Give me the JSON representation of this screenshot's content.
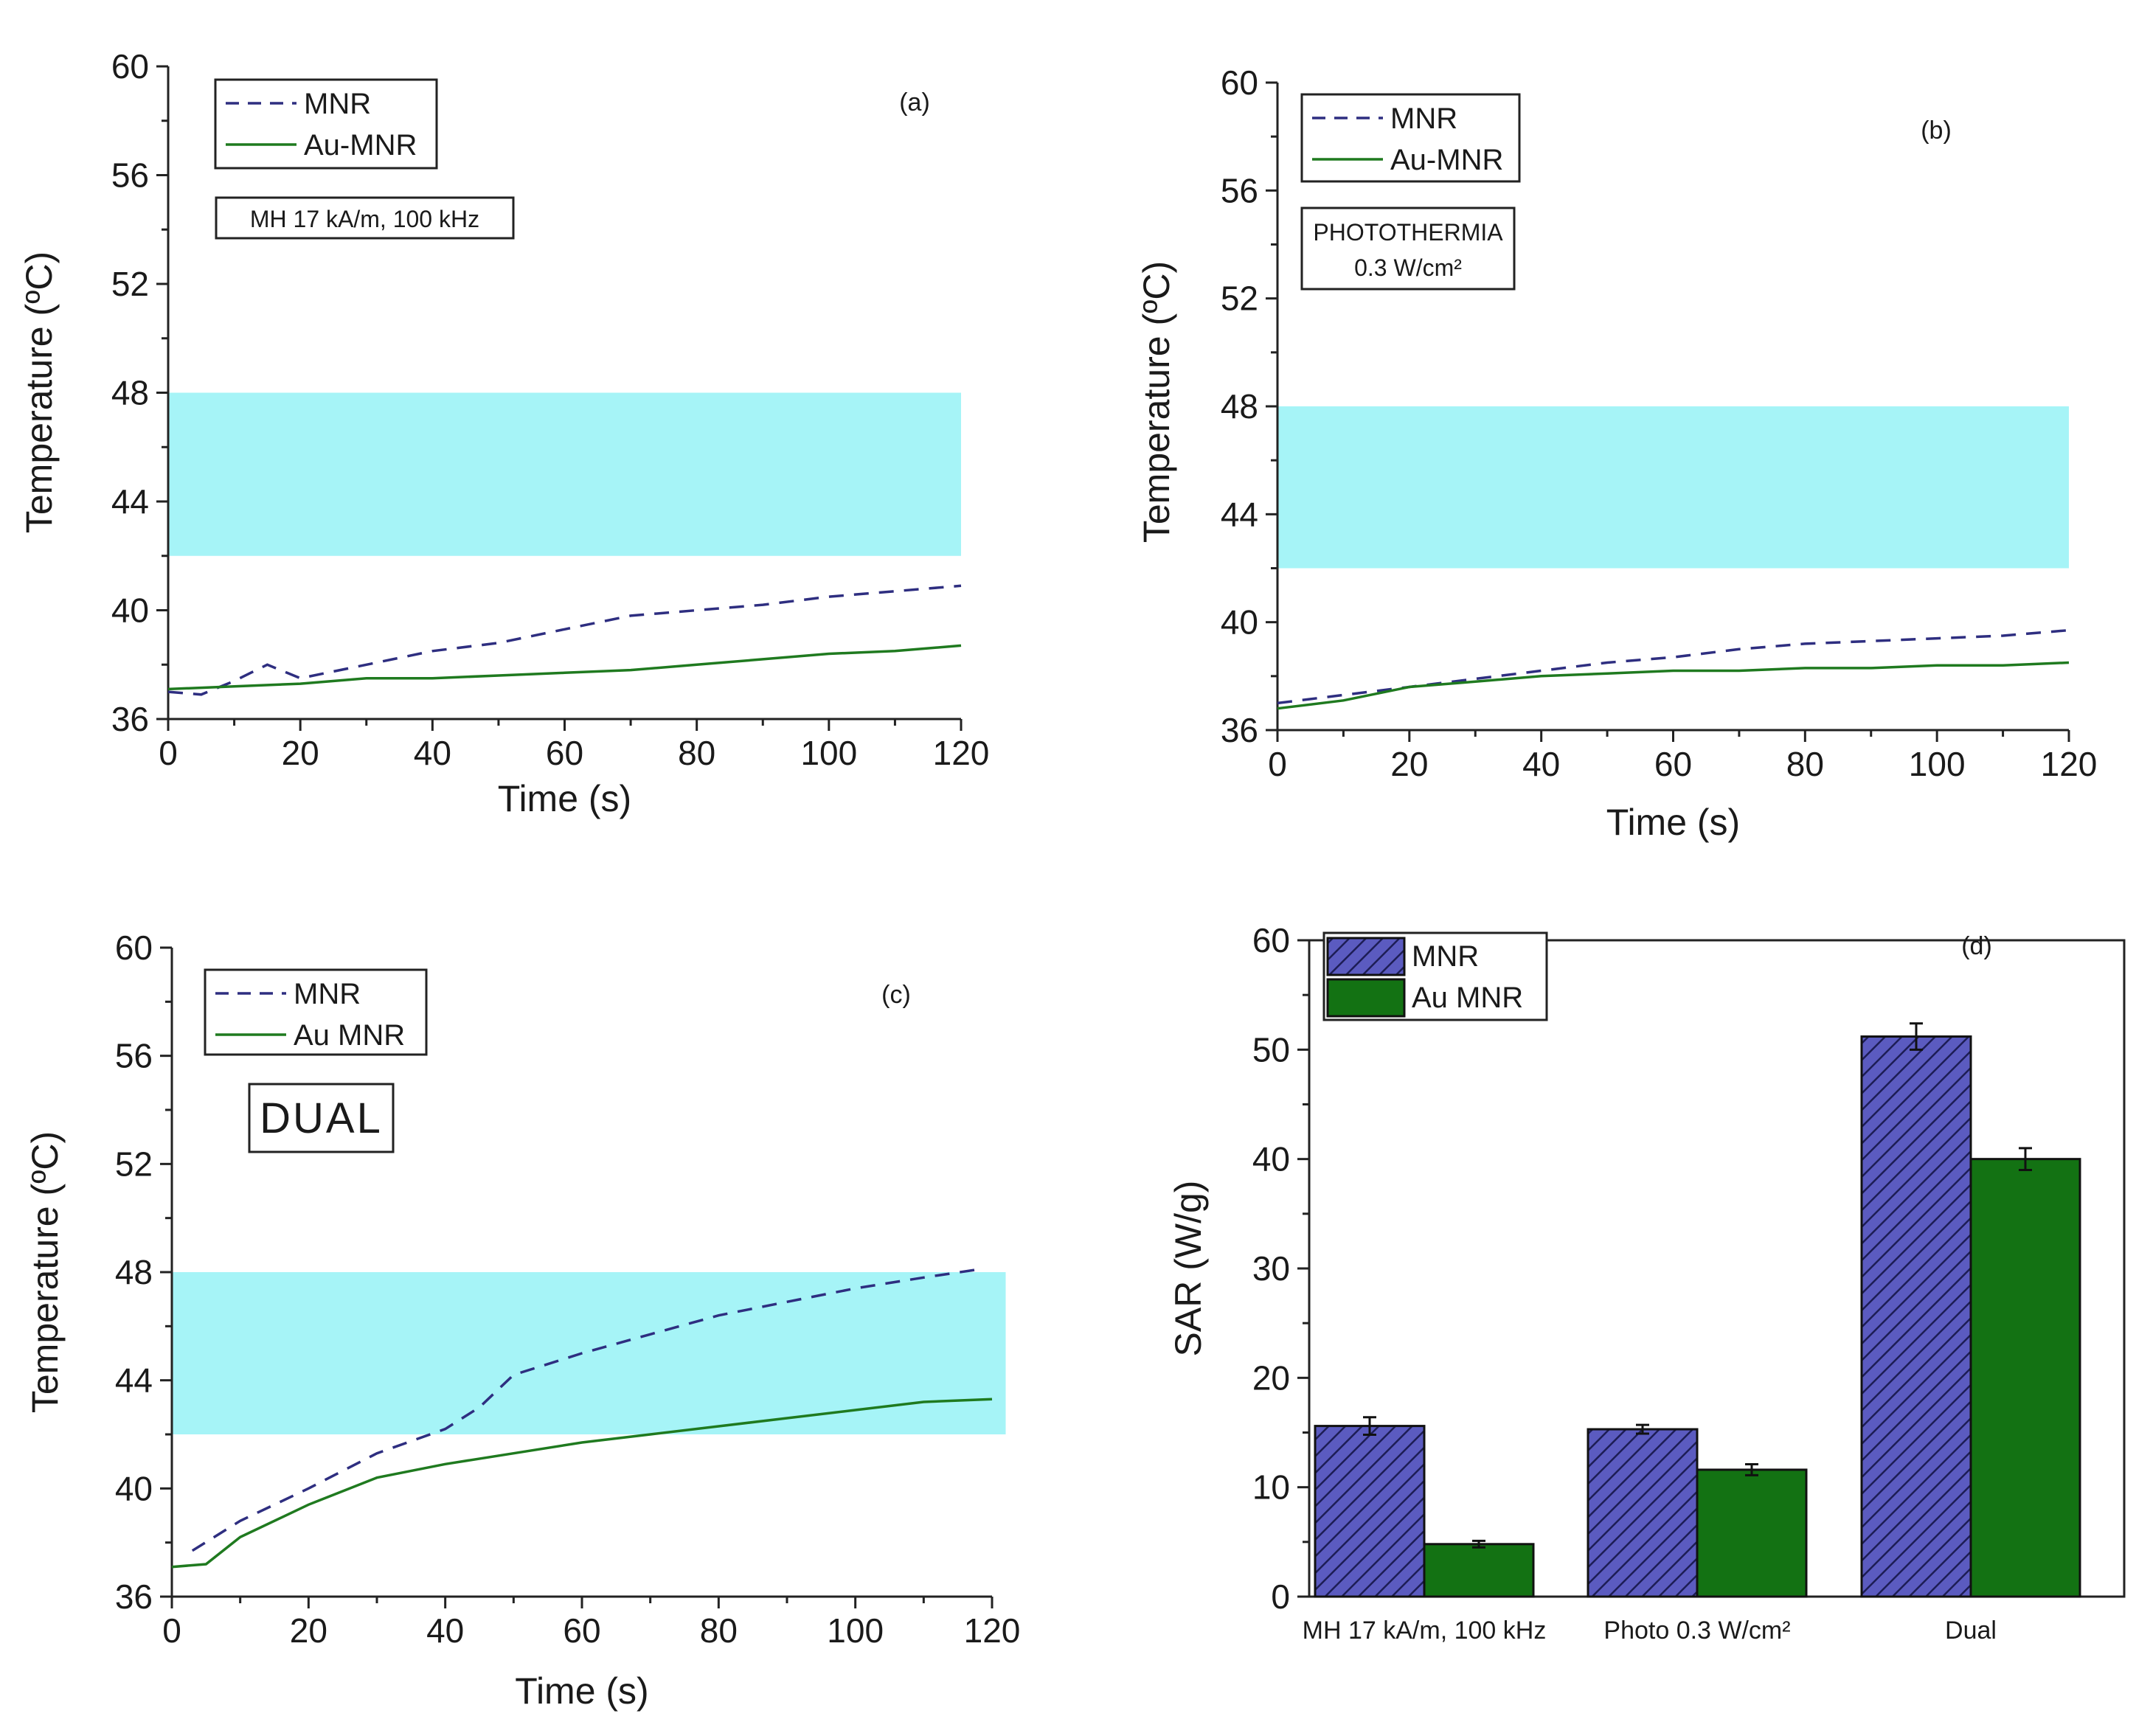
{
  "colors": {
    "mnr": "#2e2e80",
    "au_mnr": "#1f7a1f",
    "band": "#a6f4f7",
    "bar_mnr": "#5b5bc0",
    "bar_au": "#137213"
  },
  "chart_data": [
    {
      "type": "line",
      "panel": "(a)",
      "xlabel": "Time (s)",
      "ylabel": "Temperature (ºC)",
      "xlim": [
        0,
        120
      ],
      "ylim": [
        36,
        60
      ],
      "xticks": [
        0,
        20,
        40,
        60,
        80,
        100,
        120
      ],
      "yticks": [
        36,
        40,
        44,
        48,
        52,
        56,
        60
      ],
      "band": [
        42,
        48
      ],
      "band_xmax": 120,
      "legend": [
        "MNR",
        "Au-MNR"
      ],
      "annotation": "MH 17 kA/m, 100 kHz",
      "series": [
        {
          "name": "MNR",
          "style": "dashed",
          "x": [
            0,
            5,
            10,
            15,
            20,
            30,
            40,
            50,
            60,
            70,
            80,
            90,
            100,
            110,
            120
          ],
          "y": [
            37.0,
            36.9,
            37.4,
            38.0,
            37.5,
            38.0,
            38.5,
            38.8,
            39.3,
            39.8,
            40.0,
            40.2,
            40.5,
            40.7,
            40.9
          ]
        },
        {
          "name": "Au-MNR",
          "style": "solid",
          "x": [
            0,
            10,
            20,
            30,
            40,
            50,
            60,
            70,
            80,
            90,
            100,
            110,
            120
          ],
          "y": [
            37.1,
            37.2,
            37.3,
            37.5,
            37.5,
            37.6,
            37.7,
            37.8,
            38.0,
            38.2,
            38.4,
            38.5,
            38.7
          ]
        }
      ]
    },
    {
      "type": "line",
      "panel": "(b)",
      "xlabel": "Time (s)",
      "ylabel": "Temperature (ºC)",
      "xlim": [
        0,
        120
      ],
      "ylim": [
        36,
        60
      ],
      "xticks": [
        0,
        20,
        40,
        60,
        80,
        100,
        120
      ],
      "yticks": [
        36,
        40,
        44,
        48,
        52,
        56,
        60
      ],
      "band": [
        42,
        48
      ],
      "band_xmax": 120,
      "legend": [
        "MNR",
        "Au-MNR"
      ],
      "annotation_line1": "PHOTOTHERMIA",
      "annotation_line2": "0.3 W/cm²",
      "series": [
        {
          "name": "MNR",
          "style": "dashed",
          "x": [
            0,
            10,
            20,
            30,
            40,
            50,
            60,
            70,
            80,
            90,
            100,
            110,
            120
          ],
          "y": [
            37.0,
            37.3,
            37.6,
            37.9,
            38.2,
            38.5,
            38.7,
            39.0,
            39.2,
            39.3,
            39.4,
            39.5,
            39.7
          ]
        },
        {
          "name": "Au-MNR",
          "style": "solid",
          "x": [
            0,
            10,
            20,
            30,
            40,
            50,
            60,
            70,
            80,
            90,
            100,
            110,
            120
          ],
          "y": [
            36.8,
            37.1,
            37.6,
            37.8,
            38.0,
            38.1,
            38.2,
            38.2,
            38.3,
            38.3,
            38.4,
            38.4,
            38.5
          ]
        }
      ]
    },
    {
      "type": "line",
      "panel": "(c)",
      "xlabel": "Time (s)",
      "ylabel": "Temperature (ºC)",
      "xlim": [
        0,
        120
      ],
      "ylim": [
        36,
        60
      ],
      "xticks": [
        0,
        20,
        40,
        60,
        80,
        100,
        120
      ],
      "yticks": [
        36,
        40,
        44,
        48,
        52,
        56,
        60
      ],
      "band": [
        42,
        48
      ],
      "band_xmax": 122,
      "legend": [
        "MNR",
        "Au MNR"
      ],
      "annotation": "DUAL",
      "series": [
        {
          "name": "MNR",
          "style": "dashed",
          "x": [
            3,
            10,
            20,
            30,
            40,
            45,
            50,
            55,
            60,
            70,
            80,
            90,
            100,
            110,
            118
          ],
          "y": [
            37.7,
            38.8,
            40.0,
            41.3,
            42.2,
            43.0,
            44.2,
            44.6,
            45.0,
            45.7,
            46.4,
            46.9,
            47.4,
            47.8,
            48.1
          ]
        },
        {
          "name": "Au MNR",
          "style": "solid",
          "x": [
            0,
            5,
            10,
            20,
            30,
            40,
            50,
            60,
            70,
            80,
            90,
            100,
            110,
            120
          ],
          "y": [
            37.1,
            37.2,
            38.2,
            39.4,
            40.4,
            40.9,
            41.3,
            41.7,
            42.0,
            42.3,
            42.6,
            42.9,
            43.2,
            43.3
          ]
        }
      ]
    },
    {
      "type": "bar",
      "panel": "(d)",
      "ylabel": "SAR (W/g)",
      "ylim": [
        0,
        60
      ],
      "yticks": [
        0,
        10,
        20,
        30,
        40,
        50,
        60
      ],
      "categories": [
        "MH 17 kA/m, 100 kHz",
        "Photo 0.3 W/cm²",
        "Dual"
      ],
      "legend": [
        "MNR",
        "Au MNR"
      ],
      "series": [
        {
          "name": "MNR",
          "values": [
            15.6,
            15.3,
            51.2
          ],
          "errors": [
            0.8,
            0.4,
            1.2
          ]
        },
        {
          "name": "Au MNR",
          "values": [
            4.8,
            11.6,
            40.0
          ],
          "errors": [
            0.3,
            0.5,
            1.0
          ]
        }
      ]
    }
  ]
}
